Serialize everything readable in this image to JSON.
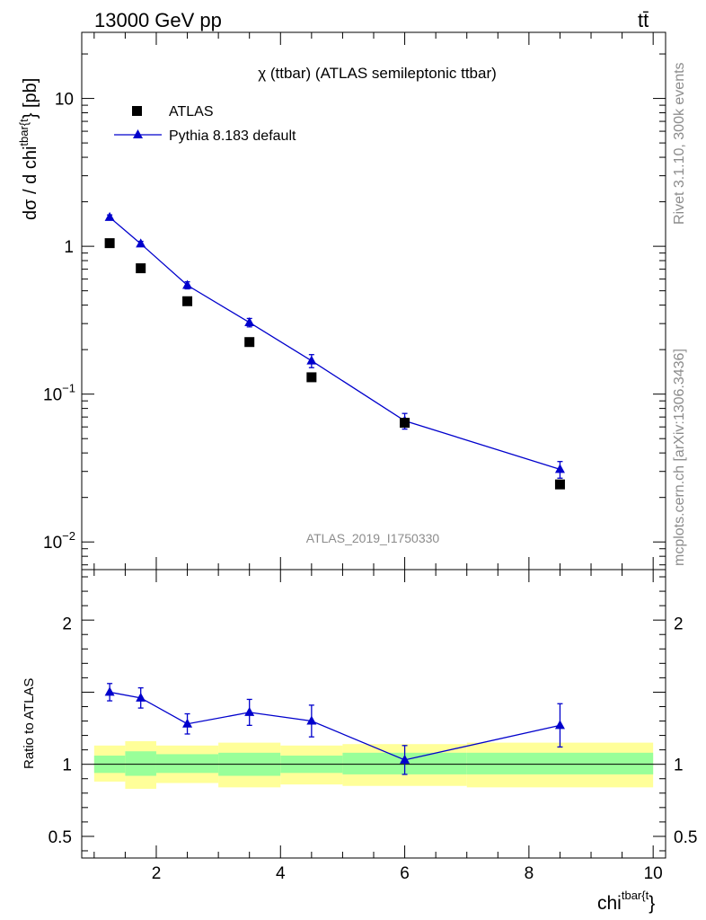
{
  "header": {
    "left": "13000 GeV pp",
    "right": "tt̄"
  },
  "side_labels": {
    "rivet": "Rivet 3.1.10,  300k events",
    "mcplots": "mcplots.cern.ch [arXiv:1306.3436]"
  },
  "chart_data": [
    {
      "type": "scatter",
      "title": "χ (ttbar) (ATLAS semileptonic ttbar)",
      "watermark": "ATLAS_2019_I1750330",
      "ylabel_main": "dσ / d chi",
      "ylabel_sup": "tbar{t",
      "ylabel_tail": "} [pb]",
      "yscale": "log",
      "ylim": [
        0.0065,
        28
      ],
      "xlim": [
        0.8,
        10.2
      ],
      "ytick_labels": [
        {
          "value": 10,
          "label": "10"
        },
        {
          "value": 1,
          "label": "1"
        },
        {
          "value": 0.1,
          "label": "10",
          "sup": "−1"
        },
        {
          "value": 0.01,
          "label": "10",
          "sup": "−2"
        }
      ],
      "legend": [
        {
          "name": "ATLAS",
          "marker": "square",
          "color": "#000000"
        },
        {
          "name": "Pythia 8.183 default",
          "marker": "triangle",
          "color": "#0000cc"
        }
      ],
      "bins": [
        [
          1.0,
          1.5
        ],
        [
          1.5,
          2.0
        ],
        [
          2.0,
          3.0
        ],
        [
          3.0,
          4.0
        ],
        [
          4.0,
          5.0
        ],
        [
          5.0,
          7.0
        ],
        [
          7.0,
          10.0
        ]
      ],
      "series": [
        {
          "name": "ATLAS",
          "x": [
            1.25,
            1.75,
            2.5,
            3.5,
            4.5,
            6.0,
            8.5
          ],
          "y": [
            1.05,
            0.71,
            0.425,
            0.225,
            0.13,
            0.064,
            0.0245
          ]
        },
        {
          "name": "Pythia 8.183 default",
          "x": [
            1.25,
            1.75,
            2.5,
            3.5,
            4.5,
            6.0,
            8.5
          ],
          "y": [
            1.57,
            1.04,
            0.545,
            0.305,
            0.168,
            0.066,
            0.031
          ],
          "yerr": [
            0.06,
            0.04,
            0.03,
            0.02,
            0.017,
            0.008,
            0.004
          ]
        }
      ]
    },
    {
      "type": "scatter",
      "ylabel": "Ratio to ATLAS",
      "xlabel": "chi",
      "xlabel_sup": "tbar{t",
      "xlabel_tail": "}",
      "xlim": [
        0.8,
        10.2
      ],
      "ylim": [
        0.35,
        2.35
      ],
      "xtick_labels": [
        "2",
        "4",
        "6",
        "8",
        "10"
      ],
      "ytick_labels": [
        "2",
        "1",
        "0.5"
      ],
      "reference_line": 1,
      "band_inner": [
        [
          0.94,
          1.06
        ],
        [
          0.92,
          1.09
        ],
        [
          0.94,
          1.07
        ],
        [
          0.92,
          1.08
        ],
        [
          0.94,
          1.06
        ],
        [
          0.93,
          1.08
        ],
        [
          0.93,
          1.08
        ]
      ],
      "band_outer": [
        [
          0.88,
          1.13
        ],
        [
          0.83,
          1.16
        ],
        [
          0.87,
          1.13
        ],
        [
          0.84,
          1.15
        ],
        [
          0.86,
          1.13
        ],
        [
          0.85,
          1.14
        ],
        [
          0.84,
          1.15
        ]
      ],
      "series": [
        {
          "name": "Pythia 8.183 default",
          "x": [
            1.25,
            1.75,
            2.5,
            3.5,
            4.5,
            6.0,
            8.5
          ],
          "y": [
            1.5,
            1.46,
            1.28,
            1.36,
            1.3,
            1.03,
            1.27
          ],
          "yerr_low": [
            0.06,
            0.07,
            0.07,
            0.09,
            0.11,
            0.1,
            0.15
          ],
          "yerr_high": [
            0.06,
            0.07,
            0.07,
            0.09,
            0.11,
            0.1,
            0.15
          ]
        }
      ]
    }
  ]
}
